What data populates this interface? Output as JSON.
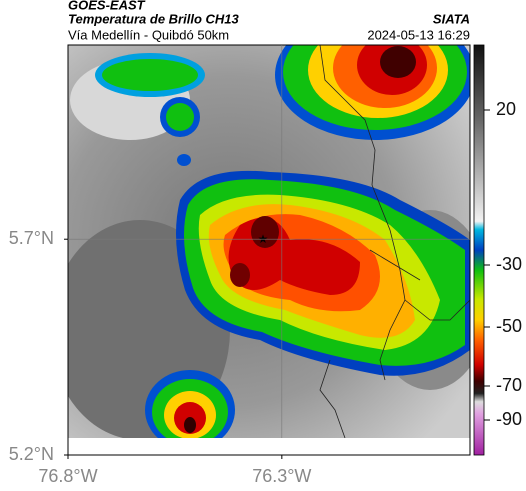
{
  "header": {
    "title": "GOES-EAST",
    "subtitle": "Temperatura de Brillo CH13",
    "route": "Vía Medellín - Quibdó 50km",
    "source": "SIATA",
    "datetime": "2024-05-13 16:29"
  },
  "map": {
    "xlim": [
      -76.8,
      -75.86
    ],
    "ylim": [
      5.2,
      6.15
    ],
    "xticks": [
      {
        "value": -76.8,
        "label": "76.8°W"
      },
      {
        "value": -76.3,
        "label": "76.3°W"
      }
    ],
    "yticks": [
      {
        "value": 5.2,
        "label": "5.2°N"
      },
      {
        "value": 5.7,
        "label": "5.7°N"
      }
    ]
  },
  "colorbar": {
    "ticks": [
      20,
      -30,
      -50,
      -70,
      -90
    ]
  }
}
